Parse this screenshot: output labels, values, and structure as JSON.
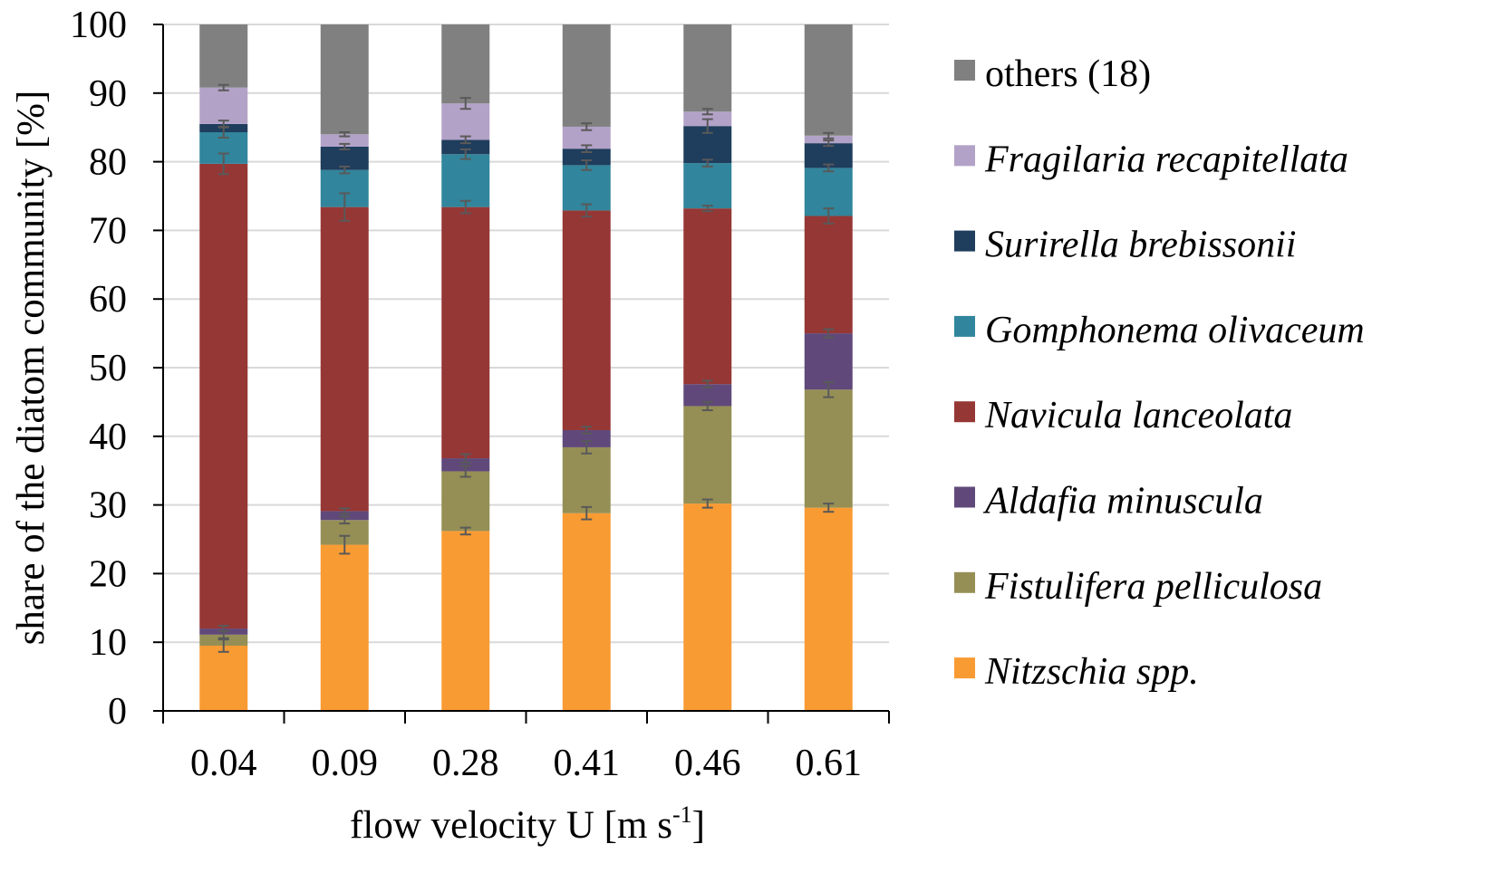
{
  "chart_data": {
    "type": "bar",
    "stacked": true,
    "percent_stacked": true,
    "xlabel": "flow velocity U [m s",
    "xlabel_superscript": "-1",
    "xlabel_suffix": "]",
    "ylabel": "share of the diatom community [%]",
    "ylim": [
      0,
      100
    ],
    "yticks": [
      "0",
      "10",
      "20",
      "30",
      "40",
      "50",
      "60",
      "70",
      "80",
      "90",
      "100"
    ],
    "grid": true,
    "legend_position": "right",
    "categories": [
      "0.04",
      "0.09",
      "0.28",
      "0.41",
      "0.46",
      "0.61"
    ],
    "series": [
      {
        "name": "Nitzschia spp.",
        "italic": true,
        "color": "#F99B33",
        "values": [
          9.5,
          24.2,
          26.2,
          28.8,
          30.2,
          29.6
        ],
        "error": [
          0.9,
          1.3,
          0.5,
          0.9,
          0.6,
          0.6
        ]
      },
      {
        "name": "Fistulifera pelliculosa",
        "italic": true,
        "color": "#958F55",
        "values": [
          1.6,
          3.6,
          8.7,
          9.6,
          14.2,
          17.2
        ],
        "error": [
          0.5,
          0.5,
          0.8,
          0.9,
          0.6,
          1.1
        ]
      },
      {
        "name": "Aldafia minuscula",
        "italic": true,
        "color": "#60497A",
        "values": [
          0.9,
          1.3,
          1.9,
          2.5,
          3.2,
          8.2
        ],
        "error": [
          0.4,
          0.4,
          0.6,
          0.5,
          0.5,
          0.6
        ]
      },
      {
        "name": "Navicula lanceolata",
        "italic": true,
        "color": "#953735",
        "values": [
          67.7,
          44.3,
          36.6,
          32.0,
          25.6,
          17.1
        ],
        "error": [
          1.5,
          2.0,
          0.9,
          0.9,
          0.4,
          1.1
        ]
      },
      {
        "name": "Gomphonema olivaceum",
        "italic": true,
        "color": "#31859C",
        "values": [
          4.6,
          5.4,
          7.7,
          6.6,
          6.6,
          7.0
        ],
        "error": [
          0.8,
          0.5,
          0.7,
          0.7,
          0.5,
          0.5
        ]
      },
      {
        "name": "Surirella brebissonii",
        "italic": true,
        "color": "#1F3D5C",
        "values": [
          1.2,
          3.4,
          2.1,
          2.4,
          5.4,
          3.6
        ],
        "error": [
          0.5,
          0.4,
          0.5,
          0.5,
          1.0,
          0.4
        ]
      },
      {
        "name": "Fragilaria recapitellata",
        "italic": true,
        "color": "#B3A2C7",
        "values": [
          5.3,
          1.8,
          5.3,
          3.2,
          2.1,
          1.1
        ],
        "error": [
          0.4,
          0.3,
          0.8,
          0.5,
          0.4,
          0.4
        ]
      },
      {
        "name": "others (18)",
        "italic": false,
        "color": "#808080",
        "values": [
          9.2,
          16.0,
          11.5,
          14.9,
          12.7,
          16.2
        ],
        "error": [
          0,
          0,
          0,
          0,
          0,
          0
        ]
      }
    ]
  }
}
